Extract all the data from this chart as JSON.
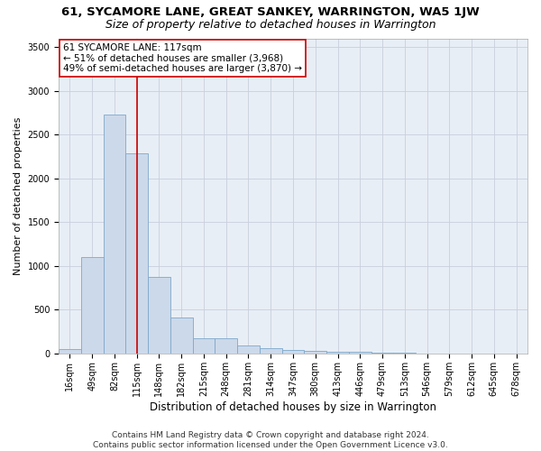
{
  "title": "61, SYCAMORE LANE, GREAT SANKEY, WARRINGTON, WA5 1JW",
  "subtitle": "Size of property relative to detached houses in Warrington",
  "xlabel": "Distribution of detached houses by size in Warrington",
  "ylabel": "Number of detached properties",
  "bar_color": "#ccd9ea",
  "bar_edge_color": "#7da8cc",
  "grid_color": "#c8d0dc",
  "background_color": "#e8eef5",
  "annotation_text": "61 SYCAMORE LANE: 117sqm\n← 51% of detached houses are smaller (3,968)\n49% of semi-detached houses are larger (3,870) →",
  "vline_x_idx": 3,
  "vline_color": "#cc0000",
  "categories": [
    "16sqm",
    "49sqm",
    "82sqm",
    "115sqm",
    "148sqm",
    "182sqm",
    "215sqm",
    "248sqm",
    "281sqm",
    "314sqm",
    "347sqm",
    "380sqm",
    "413sqm",
    "446sqm",
    "479sqm",
    "513sqm",
    "546sqm",
    "579sqm",
    "612sqm",
    "645sqm",
    "678sqm"
  ],
  "values": [
    55,
    1100,
    2730,
    2290,
    870,
    415,
    170,
    170,
    90,
    60,
    45,
    35,
    25,
    20,
    10,
    5,
    3,
    2,
    2,
    1,
    1
  ],
  "ylim": [
    0,
    3600
  ],
  "yticks": [
    0,
    500,
    1000,
    1500,
    2000,
    2500,
    3000,
    3500
  ],
  "footer": "Contains HM Land Registry data © Crown copyright and database right 2024.\nContains public sector information licensed under the Open Government Licence v3.0.",
  "title_fontsize": 9.5,
  "subtitle_fontsize": 9,
  "xlabel_fontsize": 8.5,
  "ylabel_fontsize": 8,
  "tick_fontsize": 7,
  "footer_fontsize": 6.5,
  "annot_fontsize": 7.5
}
